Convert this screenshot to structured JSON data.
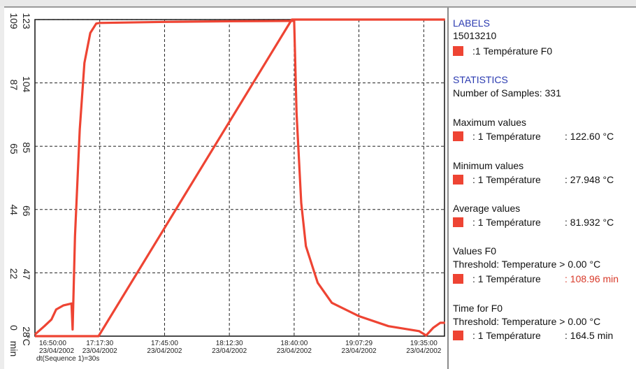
{
  "chart_data": {
    "type": "line",
    "x_ticks": [
      {
        "time": "16:50:00",
        "date": "23/04/2002"
      },
      {
        "time": "17:17:30",
        "date": "23/04/2002"
      },
      {
        "time": "17:45:00",
        "date": "23/04/2002"
      },
      {
        "time": "18:12:30",
        "date": "23/04/2002"
      },
      {
        "time": "18:40:00",
        "date": "23/04/2002"
      },
      {
        "time": "19:07:29",
        "date": "23/04/2002"
      },
      {
        "time": "19:35:00",
        "date": "23/04/2002"
      }
    ],
    "x_footer": "dt(Sequence 1)=30s",
    "y_axis_temp": {
      "ticks": [
        "28",
        "47",
        "66",
        "85",
        "104",
        "123"
      ],
      "unit": "°C",
      "range": [
        28,
        123
      ]
    },
    "y_axis_time": {
      "ticks": [
        "0",
        "22",
        "44",
        "65",
        "87",
        "109"
      ],
      "unit": "min",
      "range": [
        0,
        109
      ]
    },
    "grid": true,
    "series": [
      {
        "name": "Température",
        "color": "#ee4433",
        "y_units": "°C",
        "points": [
          [
            "16:50:00",
            28.5
          ],
          [
            "16:54:00",
            31.0
          ],
          [
            "16:57:00",
            33.0
          ],
          [
            "16:59:00",
            36.0
          ],
          [
            "17:02:00",
            37.2
          ],
          [
            "17:05:30",
            37.8
          ],
          [
            "17:06:00",
            30.0
          ],
          [
            "17:07:00",
            58.0
          ],
          [
            "17:09:00",
            90.0
          ],
          [
            "17:11:00",
            110.0
          ],
          [
            "17:13:30",
            119.0
          ],
          [
            "17:16:00",
            121.8
          ],
          [
            "17:17:30",
            122.0
          ],
          [
            "17:45:00",
            122.3
          ],
          [
            "18:12:30",
            122.5
          ],
          [
            "18:39:00",
            122.6
          ],
          [
            "18:40:00",
            122.6
          ],
          [
            "18:41:00",
            95.0
          ],
          [
            "18:43:00",
            68.0
          ],
          [
            "18:45:00",
            55.0
          ],
          [
            "18:50:00",
            44.0
          ],
          [
            "18:56:00",
            38.0
          ],
          [
            "19:07:29",
            34.0
          ],
          [
            "19:20:00",
            31.0
          ],
          [
            "19:33:00",
            29.5
          ],
          [
            "19:36:00",
            28.2
          ],
          [
            "19:39:00",
            30.5
          ],
          [
            "19:42:00",
            32.0
          ],
          [
            "19:44:00",
            32.0
          ]
        ]
      },
      {
        "name": "F0",
        "color": "#ee4433",
        "y_units": "min",
        "points": [
          [
            "16:50:00",
            0
          ],
          [
            "17:17:00",
            0
          ],
          [
            "18:39:00",
            109
          ],
          [
            "19:44:00",
            109
          ]
        ]
      }
    ]
  },
  "side_panel": {
    "labels_header": "LABELS",
    "labels_id": "15013210",
    "labels_entry": ":1 Température F0",
    "stats_header": "STATISTICS",
    "samples": "Number of Samples: 331",
    "max_title": "Maximum values",
    "max_row": ": 1  Température",
    "max_val": ": 122.60 °C",
    "min_title": "Minimum values",
    "min_row": ": 1  Température",
    "min_val": ": 27.948 °C",
    "avg_title": "Average values",
    "avg_row": ": 1  Température",
    "avg_val": ": 81.932 °C",
    "f0_title": "Values F0",
    "f0_threshold": "Threshold: Temperature > 0.00 °C",
    "f0_row": ": 1  Température",
    "f0_val": ": 108.96 min",
    "tf0_title": "Time for F0",
    "tf0_threshold": "Threshold: Temperature > 0.00 °C",
    "tf0_row": ": 1  Température",
    "tf0_val": ": 164.5 min",
    "colors": {
      "swatch": "#ee4433",
      "header": "#2a3ab0",
      "highlight": "#d83a2a"
    }
  }
}
